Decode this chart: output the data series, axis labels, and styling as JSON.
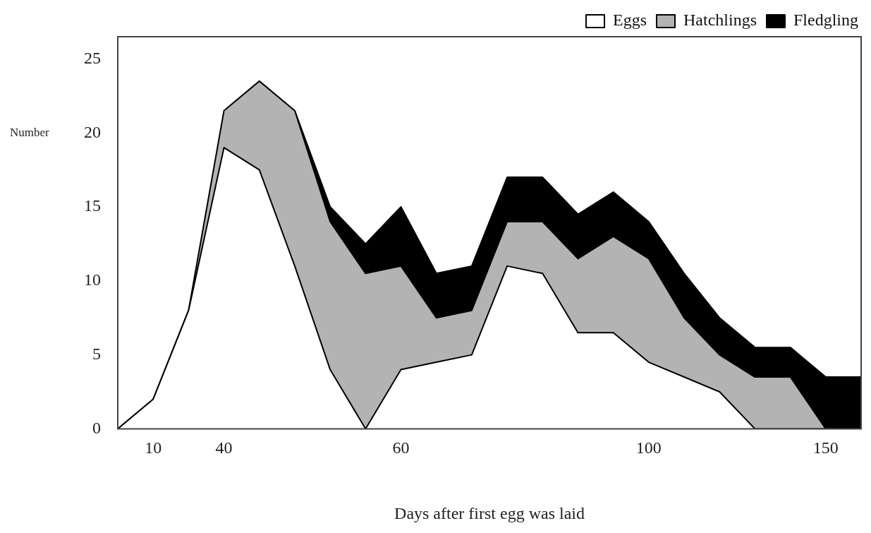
{
  "chart_data": {
    "type": "area",
    "stacked": true,
    "xlabel": "Days after first egg was laid",
    "ylabel": "Number",
    "categories": [
      null,
      "10",
      null,
      "40",
      null,
      null,
      null,
      null,
      "60",
      null,
      null,
      null,
      null,
      null,
      null,
      "100",
      null,
      null,
      null,
      null,
      "150",
      null
    ],
    "series": [
      {
        "name": "Eggs",
        "color": "#ffffff",
        "values": [
          0,
          2,
          8,
          19,
          17.5,
          11,
          4,
          0,
          4,
          4.5,
          5,
          11,
          10.5,
          6.5,
          6.5,
          4.5,
          3.5,
          2.5,
          0,
          0,
          0,
          0
        ]
      },
      {
        "name": "Hatchlings",
        "color": "#b3b3b3",
        "values": [
          0,
          0,
          0,
          2.5,
          6,
          10.5,
          10,
          10.5,
          7,
          3,
          3,
          3,
          3.5,
          5,
          6.5,
          7,
          4,
          2.5,
          3.5,
          3.5,
          0,
          0
        ]
      },
      {
        "name": "Fledgling",
        "color": "#000000",
        "values": [
          null,
          null,
          null,
          null,
          null,
          0,
          1,
          2,
          4,
          3,
          3,
          3,
          3,
          3,
          3,
          2.5,
          3,
          2.5,
          2,
          2,
          3.5,
          3.5
        ]
      }
    ],
    "ylim": [
      0,
      26.5
    ],
    "yticks": [
      0,
      5,
      10,
      15,
      20,
      25
    ],
    "grid": false,
    "legend": "top right"
  }
}
